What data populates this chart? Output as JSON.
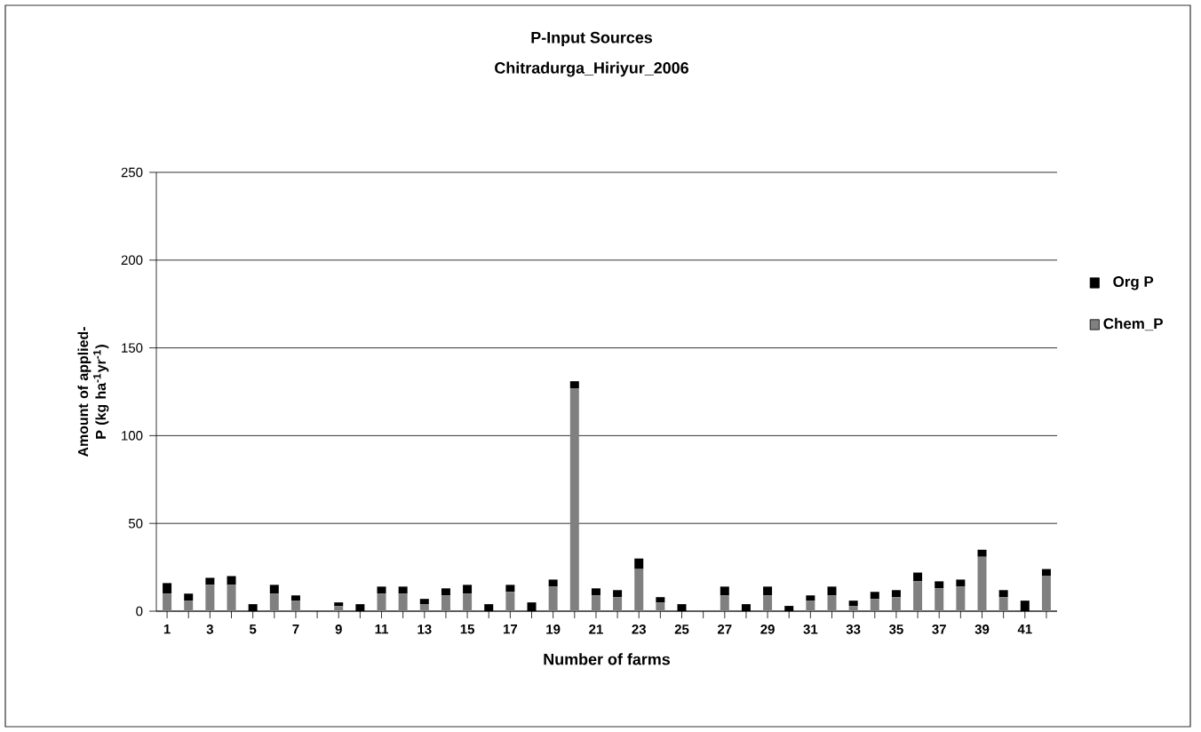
{
  "chart_data": {
    "type": "bar",
    "stacked": true,
    "title": "P-Input Sources",
    "subtitle": "Chitradurga_Hiriyur_2006",
    "xlabel": "Number of farms",
    "ylabel": "Amount of applied-P (kg ha$^{-1}$yr$^{-1}$)",
    "categories": [
      "1",
      null,
      "3",
      null,
      "5",
      null,
      "7",
      null,
      "9",
      null,
      "11",
      null,
      "13",
      null,
      "15",
      null,
      "17",
      null,
      "19",
      null,
      "21",
      null,
      "23",
      null,
      "25",
      null,
      "27",
      null,
      "29",
      null,
      "31",
      null,
      "33",
      null,
      "35",
      null,
      "37",
      null,
      "39",
      null,
      "41",
      null
    ],
    "series": [
      {
        "name": "Chem_P",
        "color": "#808080",
        "values": [
          10,
          6,
          15,
          15,
          0,
          10,
          6,
          0,
          3,
          0,
          10,
          10,
          4,
          9,
          10,
          0,
          11,
          0,
          14,
          127,
          9,
          8,
          24,
          5,
          0,
          0,
          9,
          0,
          9,
          0,
          6,
          9,
          3,
          7,
          8,
          17,
          13,
          14,
          31,
          8,
          0,
          20
        ]
      },
      {
        "name": "Org P",
        "color": "#000000",
        "values": [
          6,
          4,
          4,
          5,
          4,
          5,
          3,
          0,
          2,
          4,
          4,
          4,
          3,
          4,
          5,
          4,
          4,
          5,
          4,
          4,
          4,
          4,
          6,
          3,
          4,
          0,
          5,
          4,
          5,
          3,
          3,
          5,
          3,
          4,
          4,
          5,
          4,
          4,
          4,
          4,
          6,
          4
        ]
      }
    ],
    "ylim": [
      0,
      250
    ],
    "yticks": [
      0,
      50,
      100,
      150,
      200,
      250
    ],
    "grid": "y",
    "legend": "right"
  }
}
